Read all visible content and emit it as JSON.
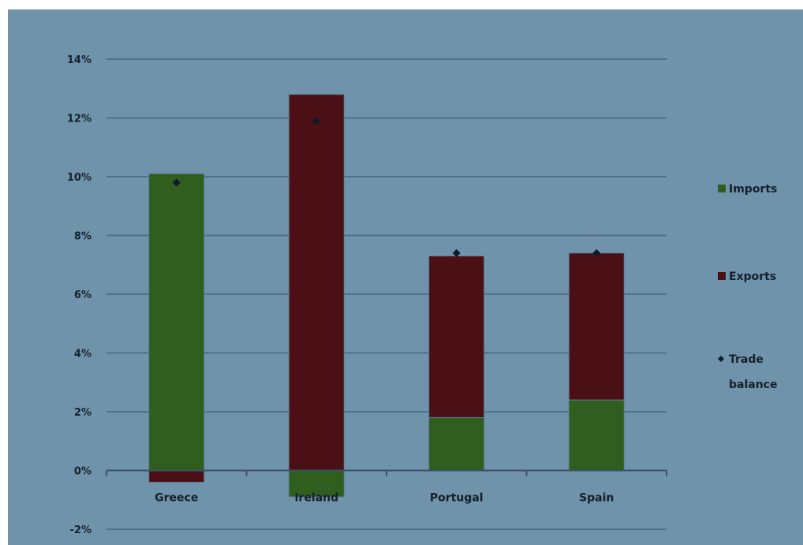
{
  "chart_data": {
    "type": "bar",
    "stacked": true,
    "categories": [
      "Greece",
      "Ireland",
      "Portugal",
      "Spain"
    ],
    "series": [
      {
        "name": "Imports",
        "kind": "bar",
        "color": "#2f5e1f",
        "values": [
          10.1,
          -0.9,
          1.8,
          2.4
        ]
      },
      {
        "name": "Exports",
        "kind": "bar",
        "color": "#4a1015",
        "values": [
          -0.4,
          12.8,
          5.5,
          5.0
        ]
      },
      {
        "name": "Trade balance",
        "kind": "marker",
        "color": "#0d1a2a",
        "values": [
          9.8,
          11.9,
          7.4,
          7.4
        ]
      }
    ],
    "ylim": [
      -2,
      14
    ],
    "yticks": [
      "-2%",
      "0%",
      "2%",
      "4%",
      "6%",
      "8%",
      "10%",
      "12%",
      "14%"
    ],
    "ytick_values": [
      -2,
      0,
      2,
      4,
      6,
      8,
      10,
      12,
      14
    ],
    "grid": true,
    "legend_position": "right",
    "legend": {
      "imports": "Imports",
      "exports": "Exports",
      "trade_line1": "Trade",
      "trade_line2": "balance"
    },
    "background_color": "#6f93ab",
    "gridline_color": "#4f6f8a",
    "xlabel": "",
    "ylabel": ""
  }
}
